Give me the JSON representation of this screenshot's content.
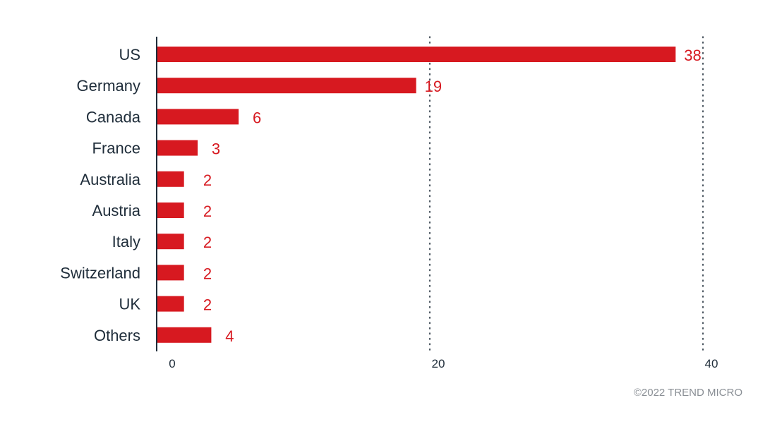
{
  "chart_data": {
    "type": "bar",
    "orientation": "horizontal",
    "categories": [
      "US",
      "Germany",
      "Canada",
      "France",
      "Australia",
      "Austria",
      "Italy",
      "Switzerland",
      "UK",
      "Others"
    ],
    "values": [
      38,
      19,
      6,
      3,
      2,
      2,
      2,
      2,
      2,
      4
    ],
    "xlim": [
      0,
      40
    ],
    "xticks": [
      0,
      20,
      40
    ],
    "grid": "vertical dotted at 20 and 40",
    "bar_color": "#d71920",
    "label_color": "#d71920",
    "title": "",
    "xlabel": "",
    "ylabel": ""
  },
  "footer": {
    "copyright": "©2022 TREND MICRO"
  }
}
